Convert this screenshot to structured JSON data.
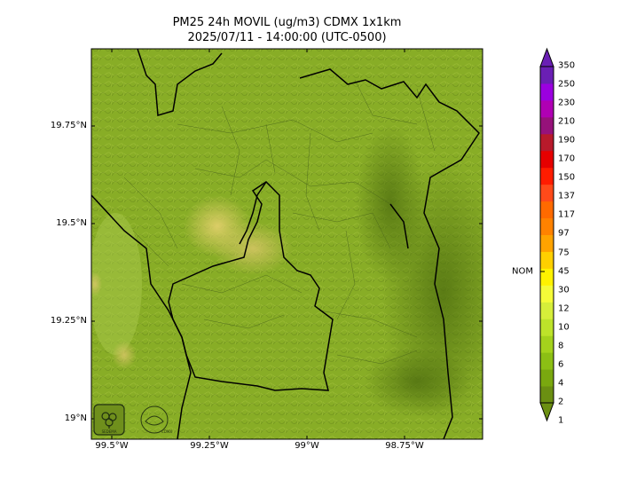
{
  "title": {
    "line1": "PM25 24h MOVIL (ug/m3) CDMX 1x1km",
    "line2": "2025/07/11 - 14:00:00 (UTC-0500)"
  },
  "map": {
    "lat_ticks": [
      "19.75°N",
      "19.5°N",
      "19.25°N",
      "19°N"
    ],
    "lon_ticks": [
      "99.5°W",
      "99.25°W",
      "99°W",
      "98.75°W"
    ],
    "base_color": "#88ad26",
    "hotspot_color": "#d6c55a"
  },
  "colorbar": {
    "levels": [
      "1",
      "2",
      "4",
      "6",
      "8",
      "10",
      "12",
      "30",
      "45",
      "75",
      "97",
      "117",
      "137",
      "150",
      "170",
      "190",
      "210",
      "230",
      "250",
      "350"
    ],
    "colors": [
      "#6b8f12",
      "#7aa80f",
      "#8cbf14",
      "#a4d21c",
      "#bde32a",
      "#d6ee3a",
      "#f5fb38",
      "#fff200",
      "#ffd000",
      "#ffa300",
      "#ff8200",
      "#ff6a00",
      "#ff4a1a",
      "#ff1c00",
      "#e60000",
      "#b81a2b",
      "#96127a",
      "#b000b4",
      "#9b00e0",
      "#6a1fb4"
    ],
    "nom_label": "NOM",
    "nom_value": "45"
  },
  "logos": {
    "left": "SEDEMA",
    "right": "CDMX"
  }
}
